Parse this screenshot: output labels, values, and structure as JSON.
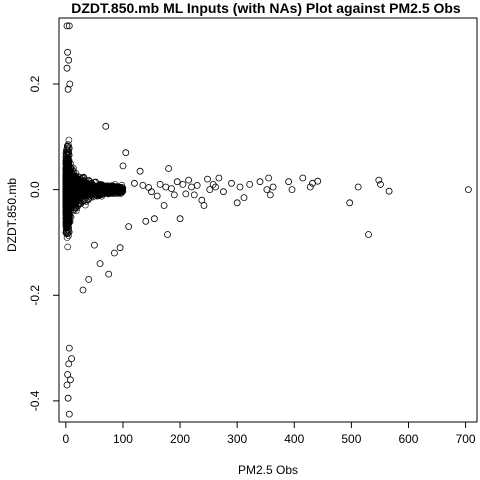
{
  "chart_data": {
    "type": "scatter",
    "title": "DZDT.850.mb ML Inputs (with NAs) Plot against PM2.5 Obs",
    "xlabel": "PM2.5 Obs",
    "ylabel": "DZDT.850.mb",
    "xlim": [
      -12,
      720
    ],
    "ylim": [
      -0.44,
      0.325
    ],
    "x_ticks": [
      0,
      100,
      200,
      300,
      400,
      500,
      600,
      700
    ],
    "y_ticks": [
      -0.4,
      -0.2,
      0.0,
      0.2
    ],
    "x_tick_labels": [
      "0",
      "100",
      "200",
      "300",
      "400",
      "500",
      "600",
      "700"
    ],
    "y_tick_labels": [
      "-0.4",
      "-0.2",
      "0.0",
      "0.2"
    ],
    "dense_region": {
      "description_free": true,
      "x_range": [
        0,
        100
      ],
      "spine_x_max": 6,
      "y_extent_at_zero": [
        -0.42,
        0.31
      ],
      "decay_at_x100": 0.012
    },
    "points": [
      [
        2,
        0.31
      ],
      [
        6,
        0.31
      ],
      [
        3,
        0.26
      ],
      [
        5,
        0.245
      ],
      [
        2,
        0.23
      ],
      [
        7,
        0.2
      ],
      [
        4,
        0.19
      ],
      [
        2,
        -0.37
      ],
      [
        4,
        -0.395
      ],
      [
        6,
        -0.425
      ],
      [
        3,
        -0.35
      ],
      [
        8,
        -0.36
      ],
      [
        5,
        -0.33
      ],
      [
        10,
        -0.32
      ],
      [
        6,
        -0.3
      ],
      [
        70,
        0.12
      ],
      [
        105,
        0.07
      ],
      [
        100,
        0.045
      ],
      [
        130,
        0.035
      ],
      [
        30,
        -0.19
      ],
      [
        40,
        -0.17
      ],
      [
        75,
        -0.16
      ],
      [
        60,
        -0.14
      ],
      [
        85,
        -0.12
      ],
      [
        95,
        -0.11
      ],
      [
        50,
        -0.105
      ],
      [
        110,
        -0.07
      ],
      [
        155,
        -0.055
      ],
      [
        140,
        -0.06
      ],
      [
        178,
        -0.085
      ],
      [
        172,
        -0.03
      ],
      [
        200,
        -0.055
      ],
      [
        190,
        -0.01
      ],
      [
        120,
        0.012
      ],
      [
        135,
        0.008
      ],
      [
        145,
        0.004
      ],
      [
        150,
        -0.004
      ],
      [
        160,
        -0.012
      ],
      [
        165,
        0.01
      ],
      [
        175,
        0.005
      ],
      [
        180,
        0.04
      ],
      [
        185,
        0.002
      ],
      [
        195,
        0.015
      ],
      [
        205,
        0.01
      ],
      [
        210,
        -0.008
      ],
      [
        215,
        0.018
      ],
      [
        220,
        0.005
      ],
      [
        225,
        -0.01
      ],
      [
        230,
        0.008
      ],
      [
        238,
        -0.02
      ],
      [
        242,
        -0.03
      ],
      [
        248,
        0.02
      ],
      [
        252,
        0.0
      ],
      [
        258,
        0.01
      ],
      [
        262,
        0.005
      ],
      [
        268,
        0.022
      ],
      [
        276,
        -0.004
      ],
      [
        290,
        0.012
      ],
      [
        300,
        -0.025
      ],
      [
        305,
        0.005
      ],
      [
        312,
        -0.015
      ],
      [
        322,
        0.01
      ],
      [
        340,
        0.015
      ],
      [
        352,
        0.0
      ],
      [
        355,
        0.022
      ],
      [
        358,
        -0.01
      ],
      [
        363,
        0.005
      ],
      [
        390,
        0.015
      ],
      [
        396,
        0.0
      ],
      [
        415,
        0.022
      ],
      [
        428,
        0.005
      ],
      [
        432,
        0.012
      ],
      [
        441,
        0.016
      ],
      [
        497,
        -0.025
      ],
      [
        512,
        0.005
      ],
      [
        530,
        -0.085
      ],
      [
        548,
        0.018
      ],
      [
        551,
        0.01
      ],
      [
        566,
        -0.003
      ],
      [
        705,
        0.0
      ]
    ]
  }
}
